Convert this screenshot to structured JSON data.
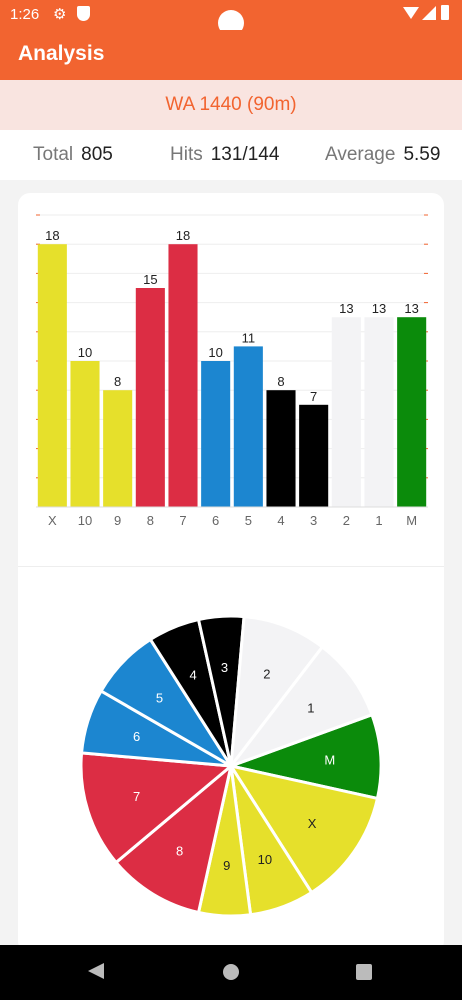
{
  "status_bar": {
    "time": "1:26",
    "icons": [
      "gear-icon",
      "shield-icon",
      "wifi-icon",
      "signal-icon",
      "battery-icon"
    ]
  },
  "app_bar": {
    "title": "Analysis"
  },
  "round": {
    "name": "WA 1440 (90m)"
  },
  "stats": {
    "total_label": "Total",
    "total_value": "805",
    "hits_label": "Hits",
    "hits_value": "131/144",
    "average_label": "Average",
    "average_value": "5.59"
  },
  "colors": {
    "accent": "#f26430",
    "yellow": "#e6e02b",
    "red": "#dc2d44",
    "blue": "#1c86d0",
    "black": "#000000",
    "white": "#f3f3f5",
    "green": "#0b8b0b"
  },
  "chart_data": [
    {
      "type": "bar",
      "categories": [
        "X",
        "10",
        "9",
        "8",
        "7",
        "6",
        "5",
        "4",
        "3",
        "2",
        "1",
        "M"
      ],
      "values": [
        18,
        10,
        8,
        15,
        18,
        10,
        11,
        8,
        7,
        13,
        13,
        13
      ],
      "colors": [
        "#e6e02b",
        "#e6e02b",
        "#e6e02b",
        "#dc2d44",
        "#dc2d44",
        "#1c86d0",
        "#1c86d0",
        "#000000",
        "#000000",
        "#f3f3f5",
        "#f3f3f5",
        "#0b8b0b"
      ],
      "ylim": [
        0,
        20
      ],
      "grid": true
    },
    {
      "type": "pie",
      "labels": [
        "M",
        "X",
        "10",
        "9",
        "8",
        "7",
        "6",
        "5",
        "4",
        "3",
        "2",
        "1"
      ],
      "values": [
        13,
        18,
        10,
        8,
        15,
        18,
        10,
        11,
        8,
        7,
        13,
        13
      ],
      "colors": [
        "#0b8b0b",
        "#e6e02b",
        "#e6e02b",
        "#e6e02b",
        "#dc2d44",
        "#dc2d44",
        "#1c86d0",
        "#1c86d0",
        "#000000",
        "#000000",
        "#f3f3f5",
        "#f3f3f5"
      ],
      "label_colors": [
        "#ffffff",
        "#222222",
        "#222222",
        "#222222",
        "#ffffff",
        "#ffffff",
        "#ffffff",
        "#ffffff",
        "#ffffff",
        "#ffffff",
        "#222222",
        "#222222"
      ]
    }
  ],
  "nav": {
    "back": "back-icon",
    "home": "home-icon",
    "recent": "recent-apps-icon"
  }
}
